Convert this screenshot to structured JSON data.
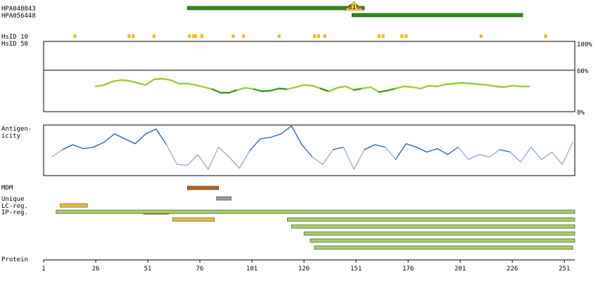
{
  "chart_data": {
    "type": "protein_feature_map",
    "axis": {
      "label": "Protein",
      "min": 1,
      "max": 256,
      "ticks": [
        1,
        26,
        51,
        76,
        101,
        126,
        151,
        176,
        201,
        226,
        251
      ]
    },
    "antigens": [
      {
        "name": "HPA048843",
        "start": 70,
        "end": 155,
        "color": "#2e8b1e"
      },
      {
        "name": "HPA056448",
        "start": 149,
        "end": 231,
        "color": "#2e8b1e"
      }
    ],
    "overlap_label": {
      "text": "81%",
      "position": 150,
      "color": "#f5d44a"
    },
    "hsid": {
      "label_10": "HsID 10",
      "label_50": "HsID 50",
      "positions": [
        16,
        42,
        44,
        54,
        71,
        73,
        74,
        77,
        92,
        97,
        114,
        131,
        133,
        136,
        162,
        164,
        173,
        175,
        211,
        242
      ],
      "color": "#f5b800"
    },
    "similarity": {
      "y_labels": [
        "100%",
        "60%",
        "0%"
      ],
      "threshold": 60,
      "x": [
        26,
        30,
        34,
        38,
        42,
        46,
        50,
        54,
        58,
        62,
        66,
        70,
        74,
        78,
        82,
        86,
        90,
        94,
        98,
        102,
        106,
        110,
        114,
        118,
        122,
        126,
        130,
        134,
        138,
        142,
        146,
        150,
        154,
        158,
        162,
        166,
        170,
        174,
        178,
        182,
        186,
        190,
        194,
        198,
        202,
        206,
        210,
        214,
        218,
        222,
        226,
        230,
        234
      ],
      "y": [
        36,
        38,
        43,
        45,
        44,
        41,
        38,
        46,
        47,
        45,
        40,
        40,
        38,
        35,
        32,
        27,
        27,
        31,
        34,
        32,
        29,
        30,
        33,
        32,
        35,
        38,
        37,
        33,
        29,
        34,
        36,
        31,
        33,
        35,
        28,
        30,
        33,
        36,
        35,
        33,
        37,
        36,
        39,
        40,
        41,
        40,
        39,
        38,
        36,
        35,
        37,
        36,
        36
      ],
      "color_light": "#9acd32",
      "color_dark": "#3a9a1a"
    },
    "antigenicity": {
      "label": "Antigen-\nicity",
      "label_lines": [
        "Antigen-",
        "icity"
      ],
      "x": [
        5,
        10,
        15,
        20,
        25,
        30,
        35,
        40,
        45,
        50,
        55,
        60,
        65,
        70,
        75,
        80,
        85,
        90,
        95,
        100,
        105,
        110,
        115,
        120,
        125,
        130,
        135,
        140,
        145,
        150,
        155,
        160,
        165,
        170,
        175,
        180,
        185,
        190,
        195,
        200,
        205,
        210,
        215,
        220,
        225,
        230,
        235,
        240,
        245,
        250,
        255
      ],
      "y": [
        0.35,
        0.5,
        0.6,
        0.52,
        0.55,
        0.65,
        0.82,
        0.72,
        0.62,
        0.82,
        0.92,
        0.6,
        0.2,
        0.18,
        0.4,
        0.1,
        0.55,
        0.35,
        0.12,
        0.48,
        0.72,
        0.75,
        0.82,
        0.98,
        0.6,
        0.35,
        0.2,
        0.5,
        0.55,
        0.1,
        0.5,
        0.6,
        0.55,
        0.3,
        0.62,
        0.55,
        0.45,
        0.52,
        0.4,
        0.55,
        0.3,
        0.4,
        0.35,
        0.5,
        0.45,
        0.25,
        0.55,
        0.3,
        0.45,
        0.2,
        0.65
      ],
      "color_high": "#1a5fb4",
      "color_low": "#8ea6d8"
    },
    "tracks": [
      {
        "label": "MDM",
        "ranges": [
          {
            "start": 70,
            "end": 85,
            "color": "#b5651d"
          }
        ]
      },
      {
        "label": "Unique",
        "ranges": [
          {
            "start": 84,
            "end": 91,
            "color": "#999999"
          }
        ]
      },
      {
        "label": "LC-reg.",
        "ranges": [
          {
            "start": 9,
            "end": 22,
            "color": "#f0c040"
          },
          {
            "start": 49,
            "end": 61,
            "color": "#f0c040"
          },
          {
            "start": 63,
            "end": 83,
            "color": "#f0c040"
          }
        ]
      },
      {
        "label": "IP-reg.",
        "ranges": [
          {
            "start": 7,
            "end": 256,
            "color": "#a8cf6a"
          },
          {
            "start": 118,
            "end": 256,
            "color": "#a8cf6a"
          },
          {
            "start": 120,
            "end": 256,
            "color": "#a8cf6a"
          },
          {
            "start": 126,
            "end": 256,
            "color": "#a8cf6a"
          },
          {
            "start": 129,
            "end": 256,
            "color": "#a8cf6a"
          },
          {
            "start": 131,
            "end": 255,
            "color": "#a8cf6a"
          }
        ]
      }
    ]
  }
}
